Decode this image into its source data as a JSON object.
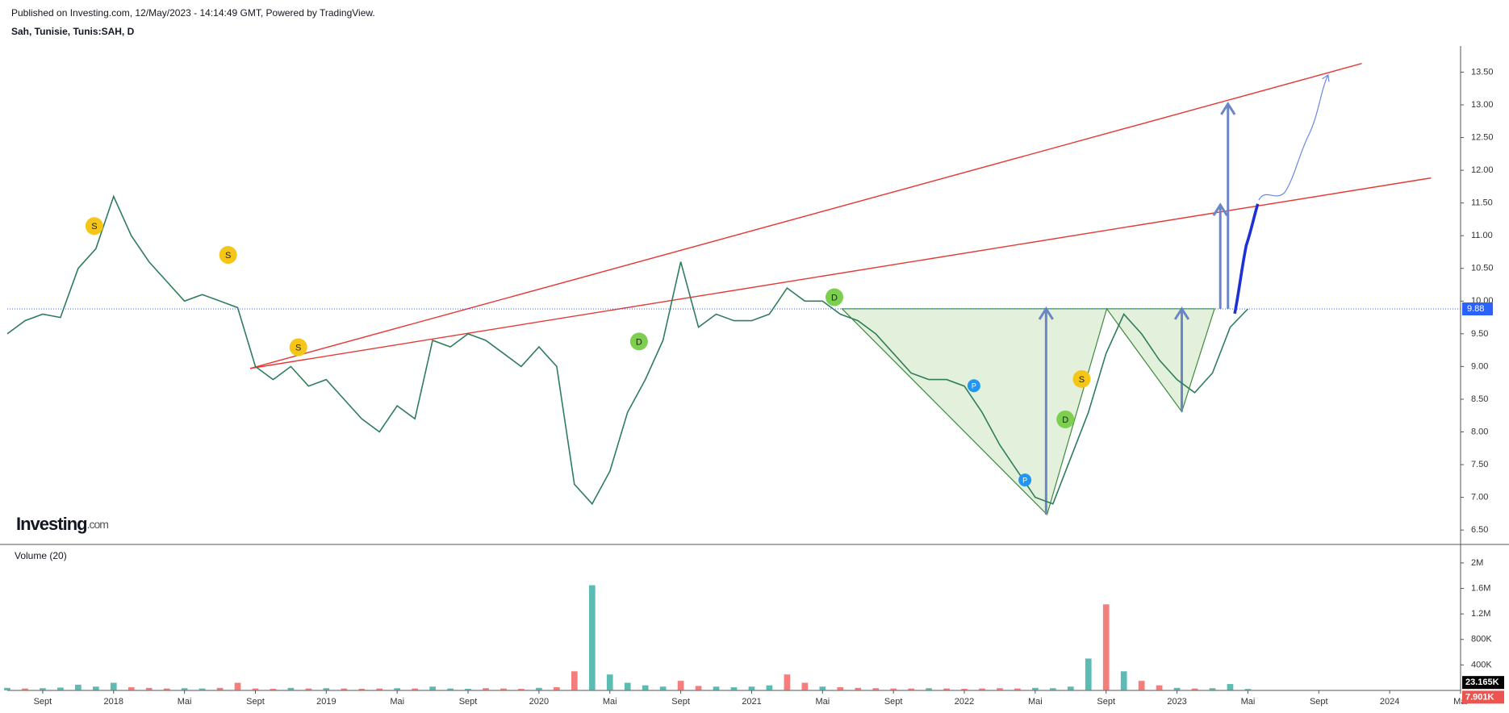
{
  "header": {
    "published": "Published on Investing.com, 12/May/2023 - 14:14:49 GMT, Powered by TradingView.",
    "symbol": "Sah, Tunisie, Tunis:SAH, D",
    "logo": "Investing",
    "logo_suffix": ".com"
  },
  "chart_data": [
    {
      "type": "line",
      "color": "#2e7d5b",
      "x": [
        "2017-07",
        "2017-08",
        "2017-09",
        "2017-10",
        "2017-11",
        "2017-12",
        "2018-01",
        "2018-02",
        "2018-03",
        "2018-04",
        "2018-05",
        "2018-06",
        "2018-07",
        "2018-08",
        "2018-09",
        "2018-10",
        "2018-11",
        "2018-12",
        "2019-01",
        "2019-02",
        "2019-03",
        "2019-04",
        "2019-05",
        "2019-06",
        "2019-07",
        "2019-08",
        "2019-09",
        "2019-10",
        "2019-11",
        "2019-12",
        "2020-01",
        "2020-02",
        "2020-03",
        "2020-04",
        "2020-05",
        "2020-06",
        "2020-07",
        "2020-08",
        "2020-09",
        "2020-10",
        "2020-11",
        "2020-12",
        "2021-01",
        "2021-02",
        "2021-03",
        "2021-04",
        "2021-05",
        "2021-06",
        "2021-07",
        "2021-08",
        "2021-09",
        "2021-10",
        "2021-11",
        "2021-12",
        "2022-01",
        "2022-02",
        "2022-03",
        "2022-04",
        "2022-05",
        "2022-06",
        "2022-07",
        "2022-08",
        "2022-09",
        "2022-10",
        "2022-11",
        "2022-12",
        "2023-01",
        "2023-02",
        "2023-03",
        "2023-04",
        "2023-05"
      ],
      "values": [
        9.5,
        9.7,
        9.8,
        9.75,
        10.5,
        10.8,
        11.6,
        11.0,
        10.6,
        10.3,
        10.0,
        10.1,
        10.0,
        9.9,
        9.0,
        8.8,
        9.0,
        8.7,
        8.8,
        8.5,
        8.2,
        8.0,
        8.4,
        8.2,
        9.4,
        9.3,
        9.5,
        9.4,
        9.2,
        9.0,
        9.3,
        9.0,
        7.2,
        6.9,
        7.4,
        8.3,
        8.8,
        9.4,
        10.6,
        9.6,
        9.8,
        9.7,
        9.7,
        9.8,
        10.2,
        10.0,
        10.0,
        9.8,
        9.7,
        9.5,
        9.2,
        8.9,
        8.8,
        8.8,
        8.7,
        8.3,
        7.8,
        7.4,
        7.0,
        6.9,
        7.6,
        8.3,
        9.2,
        9.8,
        9.5,
        9.1,
        8.8,
        8.6,
        8.9,
        9.6,
        9.88
      ],
      "last_value": 9.88,
      "xlim": [
        "2017-07",
        "2024-05"
      ],
      "xticks": [
        {
          "value": "2017-09",
          "label": "Sept"
        },
        {
          "value": "2018-01",
          "label": "2018"
        },
        {
          "value": "2018-05",
          "label": "Mai"
        },
        {
          "value": "2018-09",
          "label": "Sept"
        },
        {
          "value": "2019-01",
          "label": "2019"
        },
        {
          "value": "2019-05",
          "label": "Mai"
        },
        {
          "value": "2019-09",
          "label": "Sept"
        },
        {
          "value": "2020-01",
          "label": "2020"
        },
        {
          "value": "2020-05",
          "label": "Mai"
        },
        {
          "value": "2020-09",
          "label": "Sept"
        },
        {
          "value": "2021-01",
          "label": "2021"
        },
        {
          "value": "2021-05",
          "label": "Mai"
        },
        {
          "value": "2021-09",
          "label": "Sept"
        },
        {
          "value": "2022-01",
          "label": "2022"
        },
        {
          "value": "2022-05",
          "label": "Mai"
        },
        {
          "value": "2022-09",
          "label": "Sept"
        },
        {
          "value": "2023-01",
          "label": "2023"
        },
        {
          "value": "2023-05",
          "label": "Mai"
        },
        {
          "value": "2023-09",
          "label": "Sept"
        },
        {
          "value": "2024-01",
          "label": "2024"
        },
        {
          "value": "2024-05",
          "label": "Mai"
        }
      ],
      "ylim": [
        6.28,
        13.9
      ],
      "yticks": [
        {
          "value": 6.5,
          "label": "6.50"
        },
        {
          "value": 7,
          "label": "7.00"
        },
        {
          "value": 7.5,
          "label": "7.50"
        },
        {
          "value": 8,
          "label": "8.00"
        },
        {
          "value": 8.5,
          "label": "8.50"
        },
        {
          "value": 9,
          "label": "9.00"
        },
        {
          "value": 9.5,
          "label": "9.50"
        },
        {
          "value": 10,
          "label": "10.00"
        },
        {
          "value": 10.5,
          "label": "10.50"
        },
        {
          "value": 11,
          "label": "11.00"
        },
        {
          "value": 11.5,
          "label": "11.50"
        },
        {
          "value": 12,
          "label": "12.00"
        },
        {
          "value": 12.5,
          "label": "12.50"
        },
        {
          "value": 13,
          "label": "13.00"
        },
        {
          "value": 13.5,
          "label": "13.50"
        }
      ],
      "annotations": [
        {
          "label": "S",
          "color": "#f5c518"
        },
        {
          "label": "S",
          "color": "#f5c518"
        },
        {
          "label": "S",
          "color": "#f5c518"
        },
        {
          "label": "S",
          "color": "#f5c518"
        },
        {
          "label": "D",
          "color": "#7ccf4f"
        },
        {
          "label": "D",
          "color": "#7ccf4f"
        },
        {
          "label": "D",
          "color": "#7ccf4f"
        },
        {
          "label": "P",
          "color": "#2196f3"
        },
        {
          "label": "P",
          "color": "#2196f3"
        }
      ]
    },
    {
      "type": "bar",
      "title": "Volume (20)",
      "values": [
        40000,
        30000,
        35000,
        45000,
        90000,
        60000,
        120000,
        50000,
        40000,
        30000,
        35000,
        30000,
        40000,
        120000,
        30000,
        25000,
        40000,
        30000,
        35000,
        30000,
        25000,
        30000,
        35000,
        30000,
        60000,
        30000,
        25000,
        35000,
        30000,
        25000,
        40000,
        50000,
        300000,
        1650000,
        250000,
        120000,
        80000,
        60000,
        150000,
        70000,
        60000,
        50000,
        60000,
        80000,
        250000,
        120000,
        60000,
        50000,
        40000,
        35000,
        30000,
        30000,
        35000,
        30000,
        25000,
        30000,
        35000,
        30000,
        40000,
        35000,
        60000,
        500000,
        1350000,
        300000,
        150000,
        80000,
        40000,
        30000,
        35000,
        100000,
        23165
      ],
      "colors": [
        "#26a69a",
        "#ef5350",
        "#26a69a",
        "#26a69a",
        "#26a69a",
        "#26a69a",
        "#26a69a",
        "#ef5350",
        "#ef5350",
        "#ef5350",
        "#26a69a",
        "#26a69a",
        "#ef5350",
        "#ef5350",
        "#ef5350",
        "#ef5350",
        "#26a69a",
        "#ef5350",
        "#26a69a",
        "#ef5350",
        "#ef5350",
        "#ef5350",
        "#26a69a",
        "#ef5350",
        "#26a69a",
        "#26a69a",
        "#26a69a",
        "#ef5350",
        "#ef5350",
        "#ef5350",
        "#26a69a",
        "#ef5350",
        "#ef5350",
        "#26a69a",
        "#26a69a",
        "#26a69a",
        "#26a69a",
        "#26a69a",
        "#ef5350",
        "#ef5350",
        "#26a69a",
        "#26a69a",
        "#26a69a",
        "#26a69a",
        "#ef5350",
        "#ef5350",
        "#26a69a",
        "#ef5350",
        "#ef5350",
        "#ef5350",
        "#ef5350",
        "#ef5350",
        "#26a69a",
        "#ef5350",
        "#ef5350",
        "#ef5350",
        "#ef5350",
        "#ef5350",
        "#26a69a",
        "#26a69a",
        "#26a69a",
        "#26a69a",
        "#ef5350",
        "#26a69a",
        "#ef5350",
        "#ef5350",
        "#26a69a",
        "#ef5350",
        "#26a69a",
        "#26a69a",
        "#26a69a"
      ],
      "last_labels": [
        {
          "value": 23165,
          "label": "23.165K",
          "color": "#000000"
        },
        {
          "value": 7901,
          "label": "7.901K",
          "color": "#ef5350"
        }
      ],
      "ylim": [
        0,
        2290000
      ],
      "yticks": [
        {
          "value": 400000,
          "label": "400K"
        },
        {
          "value": 800000,
          "label": "800K"
        },
        {
          "value": 1200000,
          "label": "1.2M"
        },
        {
          "value": 1600000,
          "label": "1.6M"
        },
        {
          "value": 2000000,
          "label": "2M"
        }
      ]
    }
  ]
}
